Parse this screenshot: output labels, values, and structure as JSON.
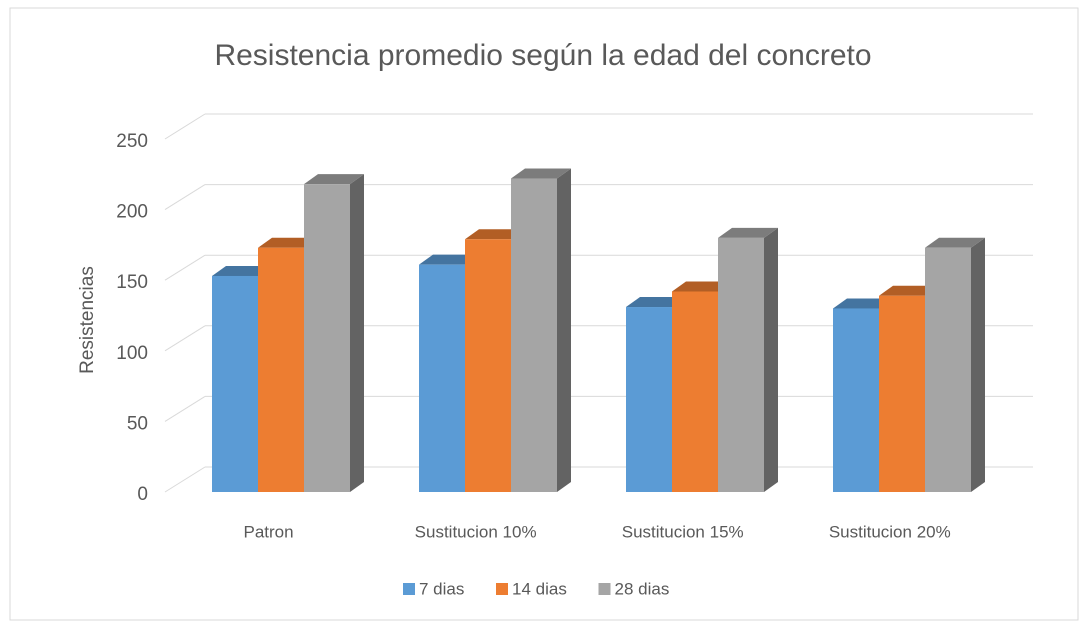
{
  "chart_data": {
    "type": "bar",
    "title": "Resistencia promedio según la edad del concreto",
    "y_label": "Resistencias",
    "categories": [
      "Patron",
      "Sustitucion 10%",
      "Sustitucion 15%",
      "Sustitucion 20%"
    ],
    "series": [
      {
        "name": "7 dias",
        "color": "#5b9bd5",
        "values": [
          153,
          161,
          131,
          130
        ]
      },
      {
        "name": "14 dias",
        "color": "#ed7d31",
        "values": [
          173,
          179,
          142,
          139
        ]
      },
      {
        "name": "28 dias",
        "color": "#a5a5a5",
        "values": [
          218,
          222,
          180,
          173
        ]
      }
    ],
    "ylim": [
      0,
      250
    ],
    "yticks": [
      0,
      50,
      100,
      150,
      200,
      250
    ],
    "grid": true,
    "legend": "bottom"
  }
}
